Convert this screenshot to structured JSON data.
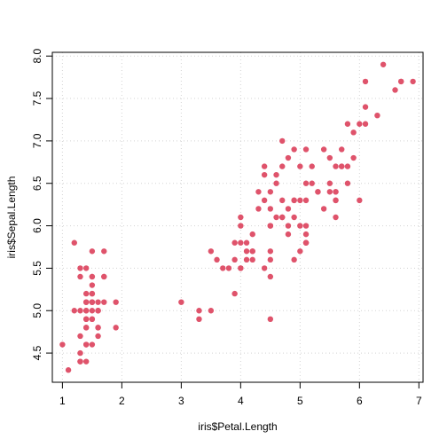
{
  "chart_data": {
    "type": "scatter",
    "title": "",
    "xlabel": "iris$Petal.Length",
    "ylabel": "iris$Sepal.Length",
    "xlim": [
      0.83,
      7.07
    ],
    "ylim": [
      4.156,
      8.044
    ],
    "xticks": [
      1,
      2,
      3,
      4,
      5,
      6,
      7
    ],
    "yticks": [
      4.5,
      5.0,
      5.5,
      6.0,
      6.5,
      7.0,
      7.5,
      8.0
    ],
    "grid": true,
    "point_color": "#df536b",
    "points": [
      [
        1.4,
        5.1
      ],
      [
        1.4,
        4.9
      ],
      [
        1.3,
        4.7
      ],
      [
        1.5,
        4.6
      ],
      [
        1.4,
        5.0
      ],
      [
        1.7,
        5.4
      ],
      [
        1.4,
        4.6
      ],
      [
        1.5,
        5.0
      ],
      [
        1.4,
        4.4
      ],
      [
        1.5,
        4.9
      ],
      [
        1.5,
        5.4
      ],
      [
        1.6,
        4.8
      ],
      [
        1.4,
        4.8
      ],
      [
        1.1,
        4.3
      ],
      [
        1.2,
        5.8
      ],
      [
        1.5,
        5.7
      ],
      [
        1.3,
        5.4
      ],
      [
        1.4,
        5.1
      ],
      [
        1.7,
        5.7
      ],
      [
        1.5,
        5.1
      ],
      [
        1.7,
        5.4
      ],
      [
        1.5,
        5.1
      ],
      [
        1.0,
        4.6
      ],
      [
        1.7,
        5.1
      ],
      [
        1.9,
        4.8
      ],
      [
        1.6,
        5.0
      ],
      [
        1.6,
        5.0
      ],
      [
        1.5,
        5.2
      ],
      [
        1.4,
        5.2
      ],
      [
        1.6,
        4.7
      ],
      [
        1.6,
        4.8
      ],
      [
        1.5,
        5.4
      ],
      [
        1.5,
        5.2
      ],
      [
        1.4,
        5.5
      ],
      [
        1.5,
        4.9
      ],
      [
        1.2,
        5.0
      ],
      [
        1.3,
        5.5
      ],
      [
        1.4,
        4.9
      ],
      [
        1.3,
        4.4
      ],
      [
        1.5,
        5.1
      ],
      [
        1.3,
        5.0
      ],
      [
        1.3,
        4.5
      ],
      [
        1.3,
        4.4
      ],
      [
        1.6,
        5.0
      ],
      [
        1.9,
        5.1
      ],
      [
        1.4,
        4.8
      ],
      [
        1.6,
        5.1
      ],
      [
        1.4,
        4.6
      ],
      [
        1.5,
        5.3
      ],
      [
        1.4,
        5.0
      ],
      [
        4.7,
        7.0
      ],
      [
        4.5,
        6.4
      ],
      [
        4.9,
        6.9
      ],
      [
        4.0,
        5.5
      ],
      [
        4.6,
        6.5
      ],
      [
        4.5,
        5.7
      ],
      [
        4.7,
        6.3
      ],
      [
        3.3,
        4.9
      ],
      [
        4.6,
        6.6
      ],
      [
        3.9,
        5.2
      ],
      [
        3.5,
        5.0
      ],
      [
        4.2,
        5.9
      ],
      [
        4.0,
        6.0
      ],
      [
        4.7,
        6.1
      ],
      [
        3.6,
        5.6
      ],
      [
        4.4,
        6.7
      ],
      [
        4.5,
        5.6
      ],
      [
        4.1,
        5.8
      ],
      [
        4.5,
        6.2
      ],
      [
        3.9,
        5.6
      ],
      [
        4.8,
        5.9
      ],
      [
        4.0,
        6.1
      ],
      [
        4.9,
        6.3
      ],
      [
        4.7,
        6.1
      ],
      [
        4.3,
        6.4
      ],
      [
        4.4,
        6.6
      ],
      [
        4.8,
        6.8
      ],
      [
        5.0,
        6.7
      ],
      [
        4.5,
        6.0
      ],
      [
        3.5,
        5.7
      ],
      [
        3.8,
        5.5
      ],
      [
        3.7,
        5.5
      ],
      [
        3.9,
        5.8
      ],
      [
        5.1,
        6.0
      ],
      [
        4.5,
        5.4
      ],
      [
        4.5,
        6.0
      ],
      [
        4.7,
        6.7
      ],
      [
        4.4,
        6.3
      ],
      [
        4.1,
        5.6
      ],
      [
        4.0,
        5.5
      ],
      [
        4.4,
        5.5
      ],
      [
        4.6,
        6.1
      ],
      [
        4.0,
        5.8
      ],
      [
        3.3,
        5.0
      ],
      [
        4.2,
        5.6
      ],
      [
        4.2,
        5.7
      ],
      [
        4.2,
        5.7
      ],
      [
        4.3,
        6.2
      ],
      [
        3.0,
        5.1
      ],
      [
        4.1,
        5.7
      ],
      [
        6.0,
        6.3
      ],
      [
        5.1,
        5.8
      ],
      [
        5.9,
        7.1
      ],
      [
        5.6,
        6.3
      ],
      [
        5.8,
        6.5
      ],
      [
        6.6,
        7.6
      ],
      [
        4.5,
        4.9
      ],
      [
        6.3,
        7.3
      ],
      [
        5.8,
        6.7
      ],
      [
        6.1,
        7.2
      ],
      [
        5.1,
        6.5
      ],
      [
        5.3,
        6.4
      ],
      [
        5.5,
        6.8
      ],
      [
        5.0,
        5.7
      ],
      [
        5.1,
        5.8
      ],
      [
        5.3,
        6.4
      ],
      [
        5.5,
        6.5
      ],
      [
        6.7,
        7.7
      ],
      [
        6.9,
        7.7
      ],
      [
        5.0,
        6.0
      ],
      [
        5.7,
        6.9
      ],
      [
        4.9,
        5.6
      ],
      [
        6.7,
        7.7
      ],
      [
        4.9,
        6.3
      ],
      [
        5.7,
        6.7
      ],
      [
        6.0,
        7.2
      ],
      [
        4.8,
        6.2
      ],
      [
        4.9,
        6.1
      ],
      [
        5.6,
        6.4
      ],
      [
        5.8,
        7.2
      ],
      [
        6.1,
        7.4
      ],
      [
        6.4,
        7.9
      ],
      [
        5.6,
        6.4
      ],
      [
        5.1,
        6.3
      ],
      [
        5.6,
        6.1
      ],
      [
        6.1,
        7.7
      ],
      [
        5.6,
        6.3
      ],
      [
        5.5,
        6.4
      ],
      [
        4.8,
        6.0
      ],
      [
        5.4,
        6.9
      ],
      [
        5.6,
        6.7
      ],
      [
        5.1,
        6.9
      ],
      [
        5.1,
        5.8
      ],
      [
        5.9,
        6.8
      ],
      [
        5.7,
        6.7
      ],
      [
        5.2,
        6.7
      ],
      [
        5.0,
        6.3
      ],
      [
        5.2,
        6.5
      ],
      [
        5.4,
        6.2
      ],
      [
        5.1,
        5.9
      ]
    ]
  }
}
